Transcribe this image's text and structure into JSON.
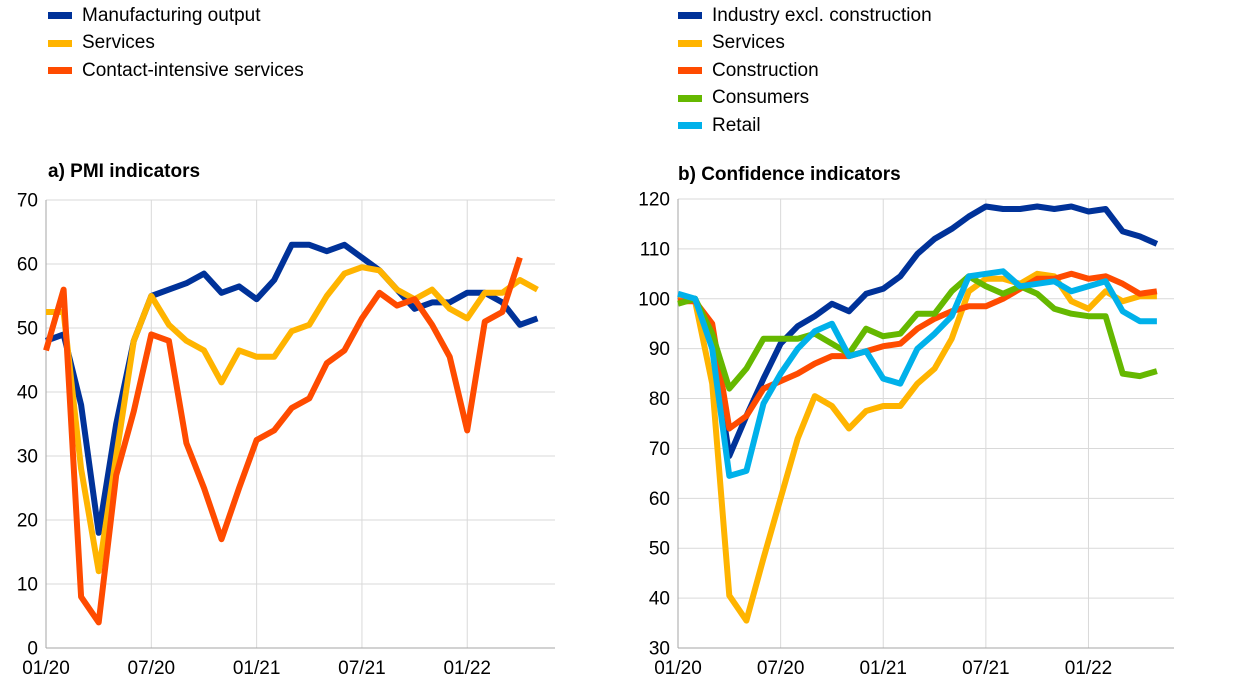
{
  "chart_data": [
    {
      "type": "line",
      "title": "a) PMI indicators",
      "x": [
        "01/20",
        "02/20",
        "03/20",
        "04/20",
        "05/20",
        "06/20",
        "07/20",
        "08/20",
        "09/20",
        "10/20",
        "11/20",
        "12/20",
        "01/21",
        "02/21",
        "03/21",
        "04/21",
        "05/21",
        "06/21",
        "07/21",
        "08/21",
        "09/21",
        "10/21",
        "11/21",
        "12/21",
        "01/22",
        "02/22",
        "03/22",
        "04/22",
        "05/22"
      ],
      "xticks": [
        "01/20",
        "07/20",
        "01/21",
        "07/21",
        "01/22"
      ],
      "ylim": [
        0,
        70
      ],
      "yticks": [
        0,
        10,
        20,
        30,
        40,
        50,
        60,
        70
      ],
      "grid": true,
      "legend_position": "top-left",
      "series": [
        {
          "name": "Manufacturing output",
          "color": "#003299",
          "values": [
            48,
            49,
            38,
            18,
            35,
            48,
            55,
            56,
            57,
            58.5,
            55.5,
            56.5,
            54.5,
            57.5,
            63,
            63,
            62,
            63,
            61,
            59,
            56,
            53,
            54,
            54,
            55.5,
            55.5,
            54,
            50.5,
            51.5
          ]
        },
        {
          "name": "Services",
          "color": "#FFB400",
          "values": [
            52.5,
            52.5,
            28,
            12,
            30,
            48,
            55,
            50.5,
            48,
            46.5,
            41.5,
            46.5,
            45.5,
            45.5,
            49.5,
            50.5,
            55,
            58.5,
            59.5,
            59,
            56,
            54.5,
            56,
            53,
            51.5,
            55.5,
            55.5,
            57.5,
            56
          ]
        },
        {
          "name": "Contact-intensive services",
          "color": "#FF4B00",
          "values": [
            46.5,
            56,
            8,
            4,
            27,
            37,
            49,
            48,
            32,
            25,
            17,
            25,
            32.5,
            34,
            37.5,
            39,
            44.5,
            46.5,
            51.5,
            55.5,
            53.5,
            54.5,
            50.5,
            45.5,
            34,
            51,
            52.5,
            61,
            null
          ]
        }
      ]
    },
    {
      "type": "line",
      "title": "b) Confidence indicators",
      "x": [
        "01/20",
        "02/20",
        "03/20",
        "04/20",
        "05/20",
        "06/20",
        "07/20",
        "08/20",
        "09/20",
        "10/20",
        "11/20",
        "12/20",
        "01/21",
        "02/21",
        "03/21",
        "04/21",
        "05/21",
        "06/21",
        "07/21",
        "08/21",
        "09/21",
        "10/21",
        "11/21",
        "12/21",
        "01/22",
        "02/22",
        "03/22",
        "04/22",
        "05/22"
      ],
      "xticks": [
        "01/20",
        "07/20",
        "01/21",
        "07/21",
        "01/22"
      ],
      "ylim": [
        30,
        120
      ],
      "yticks": [
        30,
        40,
        50,
        60,
        70,
        80,
        90,
        100,
        110,
        120
      ],
      "grid": true,
      "legend_position": "top-left",
      "series": [
        {
          "name": "Industry excl. construction",
          "color": "#003299",
          "values": [
            100.5,
            100,
            91,
            68.5,
            76.5,
            84,
            91,
            94.5,
            96.5,
            99,
            97.5,
            101,
            102,
            104.5,
            109,
            112,
            114,
            116.5,
            118.5,
            118,
            118,
            118.5,
            118,
            118.5,
            117.5,
            118,
            113.5,
            112.5,
            111
          ]
        },
        {
          "name": "Services",
          "color": "#FFB400",
          "values": [
            100,
            99.5,
            83,
            40.5,
            35.5,
            48,
            60,
            72,
            80.5,
            78.5,
            74,
            77.5,
            78.5,
            78.5,
            83,
            86,
            92,
            101.5,
            104,
            104,
            103,
            105,
            104.5,
            99.5,
            98,
            101.5,
            99.5,
            100.5,
            100.5
          ]
        },
        {
          "name": "Construction",
          "color": "#FF4B00",
          "values": [
            99.5,
            99.5,
            95,
            74,
            76.5,
            82,
            83.5,
            85,
            87,
            88.5,
            88.5,
            89.5,
            90.5,
            91,
            94,
            96,
            97.5,
            98.5,
            98.5,
            100,
            102,
            104,
            104,
            105,
            104,
            104.5,
            103,
            101,
            101.5
          ]
        },
        {
          "name": "Consumers",
          "color": "#65B800",
          "values": [
            99,
            100,
            93,
            82,
            86,
            92,
            92,
            92,
            93,
            91,
            89,
            94,
            92.5,
            93,
            97,
            97,
            101.5,
            104.5,
            102.5,
            101,
            102.5,
            101,
            98,
            97,
            96.5,
            96.5,
            85,
            84.5,
            85.5
          ]
        },
        {
          "name": "Retail",
          "color": "#00B1EA",
          "values": [
            101,
            100,
            90,
            64.5,
            65.5,
            79,
            85,
            90,
            93.5,
            95,
            88.5,
            89.5,
            84,
            83,
            90,
            93,
            96.5,
            104.5,
            105,
            105.5,
            102.5,
            103,
            103.5,
            101.5,
            102.5,
            103.5,
            97.5,
            95.5,
            95.5
          ]
        }
      ]
    }
  ]
}
